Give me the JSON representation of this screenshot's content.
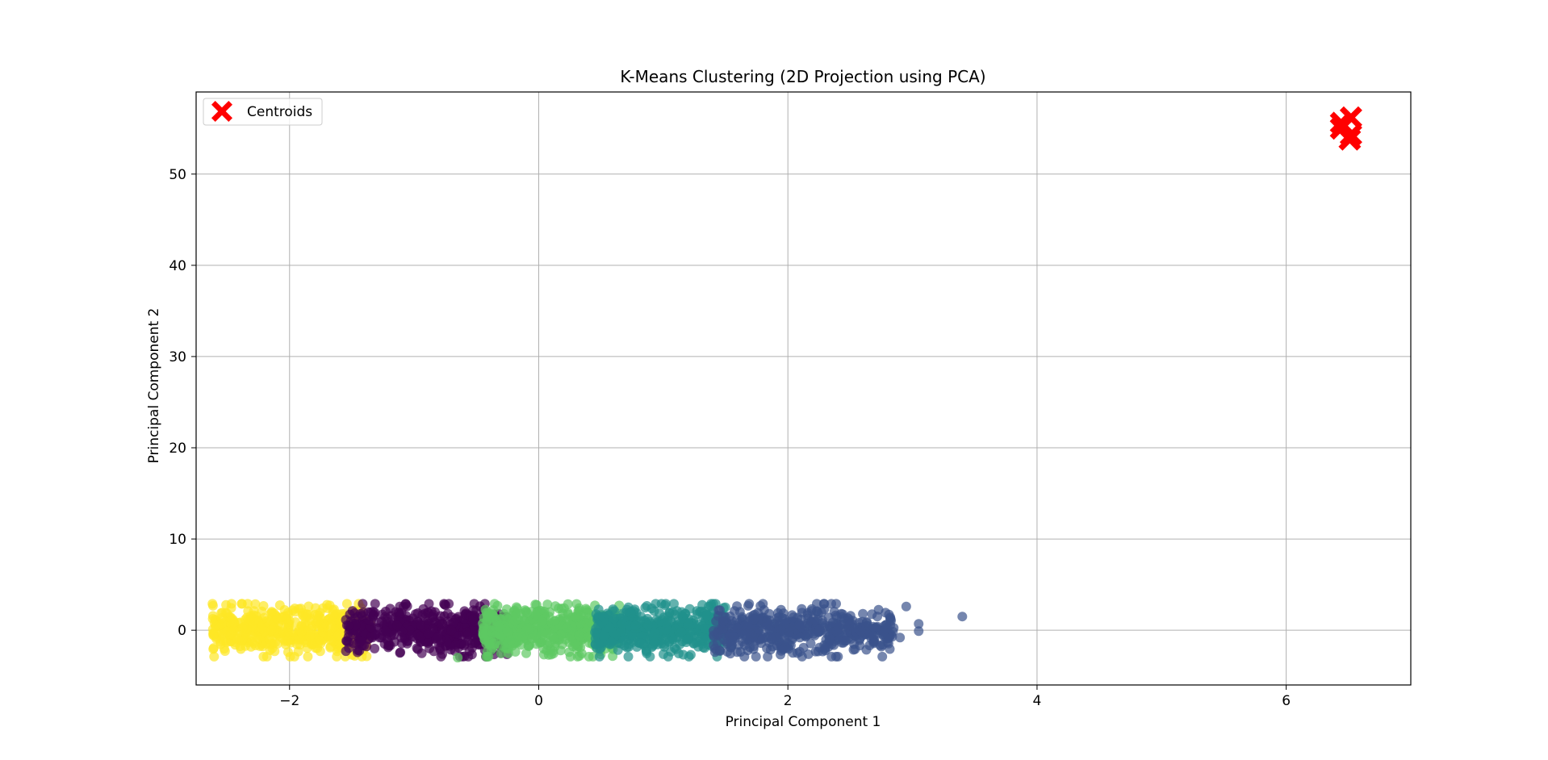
{
  "chart_data": {
    "type": "scatter",
    "title": "K-Means Clustering (2D Projection using PCA)",
    "xlabel": "Principal Component 1",
    "ylabel": "Principal Component 2",
    "xlim": [
      -2.75,
      7.0
    ],
    "ylim": [
      -6.0,
      59.0
    ],
    "xticks": [
      -2,
      0,
      2,
      4,
      6
    ],
    "xtick_labels": [
      "−2",
      "0",
      "2",
      "4",
      "6"
    ],
    "yticks": [
      0,
      10,
      20,
      30,
      40,
      50
    ],
    "ytick_labels": [
      "0",
      "10",
      "20",
      "30",
      "40",
      "50"
    ],
    "grid": true,
    "legend": {
      "placement": "top-left",
      "entries": [
        {
          "label": "Centroids",
          "marker": "X",
          "color": "#ff0000"
        }
      ]
    },
    "clusters": [
      {
        "id": 0,
        "color": "#fde725",
        "x_range": [
          -2.62,
          -1.35
        ],
        "y_spread": 2.3
      },
      {
        "id": 1,
        "color": "#440154",
        "x_range": [
          -1.55,
          -0.25
        ],
        "y_spread": 2.3
      },
      {
        "id": 2,
        "color": "#5ec962",
        "x_range": [
          -0.45,
          0.65
        ],
        "y_spread": 2.3
      },
      {
        "id": 3,
        "color": "#21918c",
        "x_range": [
          0.45,
          1.5
        ],
        "y_spread": 2.3
      },
      {
        "id": 4,
        "color": "#3b528b",
        "x_range": [
          1.4,
          2.85
        ],
        "y_spread": 2.3
      }
    ],
    "outliers": [
      {
        "x": -0.65,
        "y": -3.0,
        "color": "#5ec962"
      },
      {
        "x": 2.9,
        "y": -0.8,
        "color": "#3b528b"
      },
      {
        "x": 2.95,
        "y": 2.6,
        "color": "#3b528b"
      },
      {
        "x": 3.05,
        "y": 0.7,
        "color": "#3b528b"
      },
      {
        "x": 3.05,
        "y": -0.1,
        "color": "#3b528b"
      },
      {
        "x": 3.4,
        "y": 1.5,
        "color": "#3b528b"
      },
      {
        "x": 2.75,
        "y": -1.8,
        "color": "#3b528b"
      }
    ],
    "centroids": [
      {
        "x": 6.44,
        "y": 55.6
      },
      {
        "x": 6.52,
        "y": 56.2
      },
      {
        "x": 6.44,
        "y": 55.0
      },
      {
        "x": 6.52,
        "y": 54.3
      },
      {
        "x": 6.51,
        "y": 53.8
      }
    ]
  }
}
